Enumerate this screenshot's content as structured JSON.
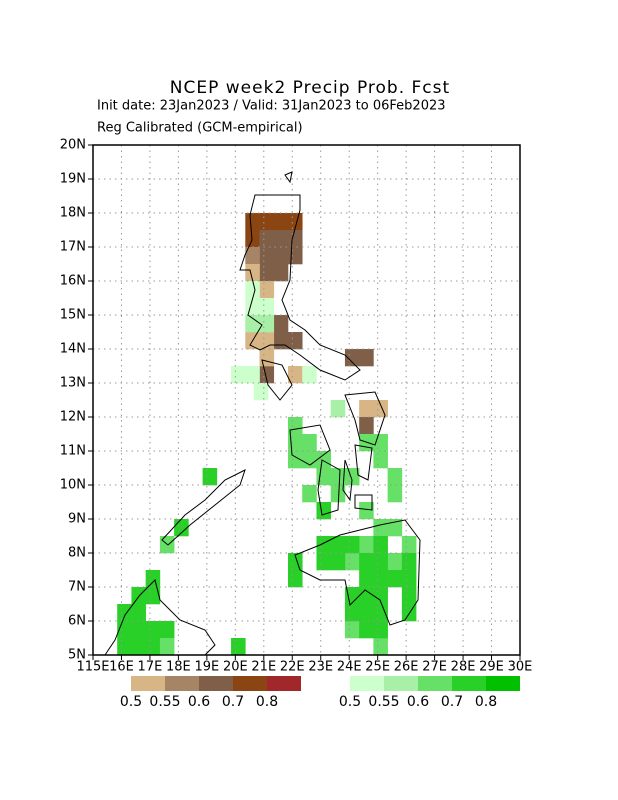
{
  "chart_data": {
    "type": "map",
    "title": "NCEP week2 Precip Prob. Fcst",
    "subtitle": "Init date: 23Jan2023 / Valid: 31Jan2023 to 06Feb2023",
    "subtitle2": "Reg Calibrated (GCM-empirical)",
    "xlim": [
      115,
      130
    ],
    "ylim": [
      5,
      20
    ],
    "cell_size": 0.5,
    "grid": true,
    "xticks": [
      {
        "value": 115,
        "label": "115E"
      },
      {
        "value": 116,
        "label": "16E"
      },
      {
        "value": 117,
        "label": "17E"
      },
      {
        "value": 118,
        "label": "18E"
      },
      {
        "value": 119,
        "label": "19E"
      },
      {
        "value": 120,
        "label": "20E"
      },
      {
        "value": 121,
        "label": "21E"
      },
      {
        "value": 122,
        "label": "22E"
      },
      {
        "value": 123,
        "label": "23E"
      },
      {
        "value": 124,
        "label": "24E"
      },
      {
        "value": 125,
        "label": "25E"
      },
      {
        "value": 126,
        "label": "26E"
      },
      {
        "value": 127,
        "label": "27E"
      },
      {
        "value": 128,
        "label": "28E"
      },
      {
        "value": 129,
        "label": "29E"
      },
      {
        "value": 130,
        "label": "30E"
      }
    ],
    "yticks": [
      {
        "value": 5,
        "label": "5N"
      },
      {
        "value": 6,
        "label": "6N"
      },
      {
        "value": 7,
        "label": "7N"
      },
      {
        "value": 8,
        "label": "8N"
      },
      {
        "value": 9,
        "label": "9N"
      },
      {
        "value": 10,
        "label": "10N"
      },
      {
        "value": 11,
        "label": "11N"
      },
      {
        "value": 12,
        "label": "12N"
      },
      {
        "value": 13,
        "label": "13N"
      },
      {
        "value": 14,
        "label": "14N"
      },
      {
        "value": 15,
        "label": "15N"
      },
      {
        "value": 16,
        "label": "16N"
      },
      {
        "value": 17,
        "label": "17N"
      },
      {
        "value": 18,
        "label": "18N"
      },
      {
        "value": 19,
        "label": "19N"
      },
      {
        "value": 20,
        "label": "20N"
      }
    ],
    "dry_scale": {
      "levels": [
        0.5,
        0.55,
        0.6,
        0.7,
        0.8
      ],
      "colors": [
        "#d8b585",
        "#a68466",
        "#7f5f48",
        "#8b4513",
        "#a0282a"
      ]
    },
    "wet_scale": {
      "levels": [
        0.5,
        0.55,
        0.6,
        0.7,
        0.8
      ],
      "colors": [
        "#ccffcc",
        "#a8f0a8",
        "#66e066",
        "#28d028",
        "#00c000"
      ]
    },
    "dry_cells": {
      "lon": [
        120.6,
        121.1,
        121.6,
        122.1,
        120.6,
        121.1,
        121.6,
        122.1,
        121.1,
        121.6,
        122.1,
        121.1,
        121.6,
        121.6,
        121.6,
        122.1,
        121.1,
        124.1,
        124.6,
        120.6,
        120.6,
        121.1,
        121.1,
        120.6,
        121.1,
        122.1,
        124.6,
        124.6,
        125.1
      ],
      "lat": [
        17.75,
        17.75,
        17.75,
        17.75,
        17.25,
        17.25,
        17.25,
        17.25,
        16.75,
        16.75,
        16.75,
        16.25,
        16.25,
        14.75,
        14.25,
        14.25,
        13.25,
        13.75,
        13.75,
        16.75,
        16.25,
        15.75,
        14.25,
        14.25,
        13.75,
        13.25,
        12.25,
        11.75,
        12.25
      ],
      "values": [
        0.7,
        0.7,
        0.7,
        0.7,
        0.7,
        0.6,
        0.6,
        0.6,
        0.6,
        0.6,
        0.6,
        0.6,
        0.6,
        0.6,
        0.6,
        0.6,
        0.6,
        0.6,
        0.6,
        0.55,
        0.5,
        0.5,
        0.5,
        0.5,
        0.5,
        0.5,
        0.5,
        0.6,
        0.5
      ]
    },
    "wet_cells": {
      "lon": [
        120.6,
        120.6,
        121.1,
        120.1,
        120.6,
        120.9,
        122.6,
        120.6,
        121.1,
        123.6,
        122.1,
        122.1,
        122.6,
        122.1,
        122.6,
        123.1,
        123.6,
        124.1,
        123.1,
        124.6,
        125.1,
        125.1,
        125.6,
        125.6,
        124.6,
        122.6,
        123.6,
        125.6,
        125.1,
        126.1,
        124.6,
        124.1,
        125.6,
        124.1,
        125.1,
        123.1,
        124.1,
        123.6,
        123.1,
        125.1,
        122.1,
        122.1,
        123.1,
        123.6,
        124.6,
        125.1,
        126.1,
        124.6,
        125.1,
        125.6,
        126.1,
        124.1,
        124.6,
        125.1,
        126.1,
        124.1,
        124.6,
        125.1,
        126.1,
        124.6,
        125.1,
        116.1,
        116.6,
        116.1,
        116.6,
        117.1,
        117.6,
        116.6,
        117.1,
        117.1,
        116.1,
        116.6,
        117.1,
        117.6,
        120.1,
        118.1,
        117.6,
        119.1
      ],
      "lat": [
        15.75,
        15.25,
        15.25,
        13.25,
        13.25,
        12.75,
        13.25,
        14.75,
        14.75,
        12.25,
        11.75,
        11.25,
        11.25,
        10.75,
        10.75,
        10.75,
        10.25,
        10.25,
        10.25,
        11.25,
        11.25,
        10.75,
        10.25,
        9.75,
        9.25,
        9.75,
        9.75,
        8.75,
        8.75,
        8.25,
        8.25,
        7.75,
        7.75,
        5.75,
        5.25,
        9.25,
        8.25,
        8.25,
        8.25,
        8.25,
        7.75,
        7.25,
        7.75,
        7.75,
        7.75,
        7.75,
        7.75,
        7.25,
        7.25,
        7.25,
        7.25,
        6.75,
        6.75,
        6.75,
        6.75,
        6.25,
        6.25,
        6.25,
        6.25,
        5.75,
        5.75,
        6.25,
        6.25,
        5.75,
        5.75,
        5.75,
        5.75,
        6.75,
        6.75,
        7.25,
        5.25,
        5.25,
        5.25,
        5.25,
        5.25,
        8.75,
        8.25,
        10.25
      ],
      "values": [
        0.5,
        0.5,
        0.5,
        0.5,
        0.5,
        0.5,
        0.5,
        0.55,
        0.55,
        0.55,
        0.6,
        0.6,
        0.6,
        0.6,
        0.6,
        0.6,
        0.6,
        0.6,
        0.6,
        0.6,
        0.6,
        0.6,
        0.6,
        0.6,
        0.6,
        0.6,
        0.6,
        0.6,
        0.6,
        0.6,
        0.6,
        0.6,
        0.6,
        0.6,
        0.6,
        0.7,
        0.7,
        0.7,
        0.7,
        0.7,
        0.7,
        0.7,
        0.7,
        0.7,
        0.7,
        0.7,
        0.7,
        0.7,
        0.7,
        0.7,
        0.7,
        0.7,
        0.7,
        0.7,
        0.7,
        0.7,
        0.7,
        0.7,
        0.7,
        0.7,
        0.7,
        0.7,
        0.7,
        0.7,
        0.7,
        0.7,
        0.7,
        0.7,
        0.7,
        0.7,
        0.7,
        0.7,
        0.7,
        0.6,
        0.7,
        0.7,
        0.6,
        0.7
      ]
    }
  }
}
